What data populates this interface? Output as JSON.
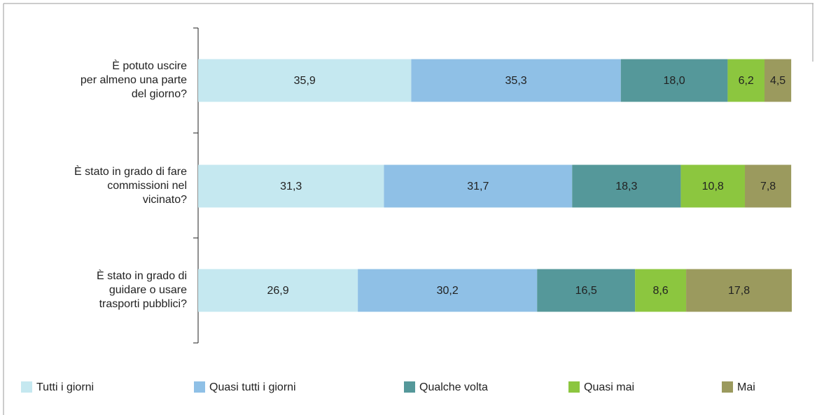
{
  "chart_data": {
    "type": "stacked-barh",
    "categories": [
      "È potuto uscire\nper almeno una parte\ndel giorno?",
      "È stato in grado di fare\ncommissioni nel\nvicinato?",
      "È stato in grado di\nguidare o usare\ntrasporti pubblici?"
    ],
    "series": [
      {
        "name": "Tutti i giorni",
        "color": "#c5e8f0",
        "values": [
          35.9,
          31.3,
          26.9
        ],
        "value_labels": [
          "35,9",
          "31,3",
          "26,9"
        ]
      },
      {
        "name": "Quasi tutti i giorni",
        "color": "#8fc0e6",
        "values": [
          35.3,
          31.7,
          30.2
        ],
        "value_labels": [
          "35,3",
          "31,7",
          "30,2"
        ]
      },
      {
        "name": "Qualche volta",
        "color": "#55989a",
        "values": [
          18.0,
          18.3,
          16.5
        ],
        "value_labels": [
          "18,0",
          "18,3",
          "16,5"
        ]
      },
      {
        "name": "Quasi mai",
        "color": "#8cc63f",
        "values": [
          6.2,
          10.8,
          8.6
        ],
        "value_labels": [
          "6,2",
          "10,8",
          "8,6"
        ]
      },
      {
        "name": "Mai",
        "color": "#9b9a5e",
        "values": [
          4.5,
          7.8,
          17.8
        ],
        "value_labels": [
          "4,5",
          "7,8",
          "17,8"
        ]
      }
    ],
    "xlim": [
      0,
      100
    ]
  }
}
